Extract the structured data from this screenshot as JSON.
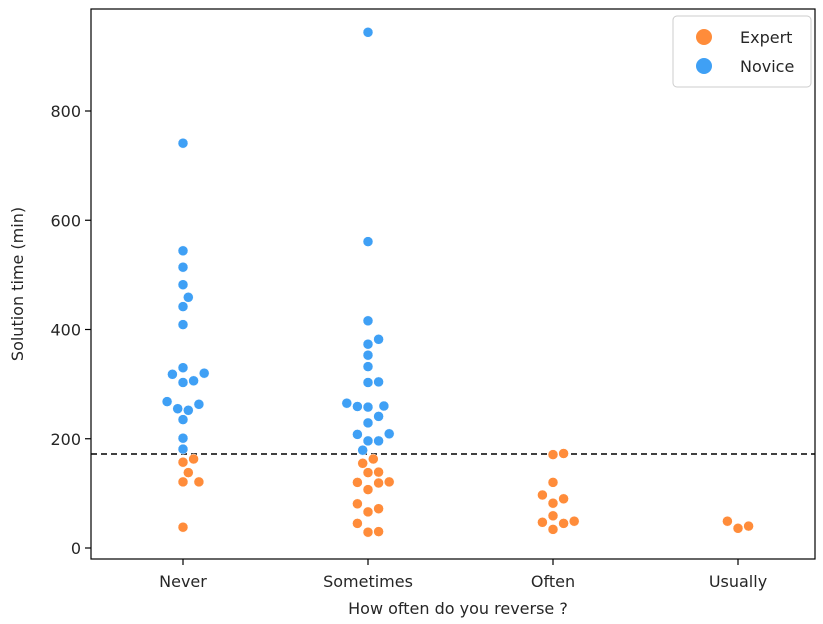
{
  "chart_data": {
    "type": "scatter",
    "subtype": "swarm",
    "categories": [
      "Never",
      "Sometimes",
      "Often",
      "Usually"
    ],
    "xlabel": "How often do you reverse ?",
    "ylabel": "Solution time (min)",
    "ylim": [
      -20,
      980
    ],
    "yticks": [
      0,
      200,
      400,
      600,
      800
    ],
    "threshold": 172,
    "grid": false,
    "legend_position": "top-right",
    "series": [
      {
        "name": "Expert",
        "color": "#FF8C3A",
        "points": [
          [
            "Never",
            163
          ],
          [
            "Never",
            157
          ],
          [
            "Never",
            138
          ],
          [
            "Never",
            121
          ],
          [
            "Never",
            121
          ],
          [
            "Never",
            38
          ],
          [
            "Sometimes",
            163
          ],
          [
            "Sometimes",
            155
          ],
          [
            "Sometimes",
            139
          ],
          [
            "Sometimes",
            138
          ],
          [
            "Sometimes",
            121
          ],
          [
            "Sometimes",
            120
          ],
          [
            "Sometimes",
            119
          ],
          [
            "Sometimes",
            107
          ],
          [
            "Sometimes",
            81
          ],
          [
            "Sometimes",
            72
          ],
          [
            "Sometimes",
            66
          ],
          [
            "Sometimes",
            45
          ],
          [
            "Sometimes",
            30
          ],
          [
            "Sometimes",
            29
          ],
          [
            "Often",
            173
          ],
          [
            "Often",
            171
          ],
          [
            "Often",
            120
          ],
          [
            "Often",
            97
          ],
          [
            "Often",
            90
          ],
          [
            "Often",
            82
          ],
          [
            "Often",
            59
          ],
          [
            "Often",
            49
          ],
          [
            "Often",
            47
          ],
          [
            "Often",
            45
          ],
          [
            "Often",
            34
          ],
          [
            "Usually",
            49
          ],
          [
            "Usually",
            40
          ],
          [
            "Usually",
            36
          ]
        ]
      },
      {
        "name": "Novice",
        "color": "#3FA0F5",
        "points": [
          [
            "Never",
            741
          ],
          [
            "Never",
            544
          ],
          [
            "Never",
            514
          ],
          [
            "Never",
            482
          ],
          [
            "Never",
            459
          ],
          [
            "Never",
            442
          ],
          [
            "Never",
            409
          ],
          [
            "Never",
            330
          ],
          [
            "Never",
            320
          ],
          [
            "Never",
            318
          ],
          [
            "Never",
            306
          ],
          [
            "Never",
            303
          ],
          [
            "Never",
            268
          ],
          [
            "Never",
            263
          ],
          [
            "Never",
            255
          ],
          [
            "Never",
            252
          ],
          [
            "Never",
            235
          ],
          [
            "Never",
            201
          ],
          [
            "Never",
            181
          ],
          [
            "Sometimes",
            944
          ],
          [
            "Sometimes",
            561
          ],
          [
            "Sometimes",
            416
          ],
          [
            "Sometimes",
            382
          ],
          [
            "Sometimes",
            373
          ],
          [
            "Sometimes",
            353
          ],
          [
            "Sometimes",
            332
          ],
          [
            "Sometimes",
            304
          ],
          [
            "Sometimes",
            303
          ],
          [
            "Sometimes",
            265
          ],
          [
            "Sometimes",
            260
          ],
          [
            "Sometimes",
            259
          ],
          [
            "Sometimes",
            258
          ],
          [
            "Sometimes",
            241
          ],
          [
            "Sometimes",
            229
          ],
          [
            "Sometimes",
            209
          ],
          [
            "Sometimes",
            208
          ],
          [
            "Sometimes",
            196
          ],
          [
            "Sometimes",
            196
          ],
          [
            "Sometimes",
            179
          ]
        ]
      }
    ]
  }
}
